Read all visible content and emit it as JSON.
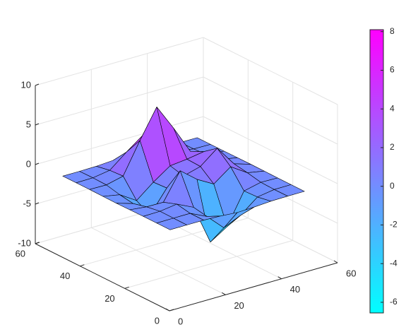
{
  "chart_data": {
    "type": "surface",
    "x": [
      1,
      7,
      13,
      19,
      25,
      31,
      37,
      43,
      49
    ],
    "y": [
      1,
      7,
      13,
      19,
      25,
      31,
      37,
      43,
      49
    ],
    "z": [
      [
        0,
        0,
        0,
        -0.08,
        -0.25,
        -0.17,
        -0.03,
        0,
        0
      ],
      [
        0,
        0.01,
        0.01,
        -0.99,
        -3.02,
        -2.05,
        -0.35,
        -0.01,
        0
      ],
      [
        0,
        0.03,
        0.33,
        -0.68,
        -5.68,
        -4.32,
        -0.44,
        0.05,
        0
      ],
      [
        -0.02,
        -0.25,
        -0.28,
        3.09,
        1.4,
        0.2,
        1.78,
        0.41,
        0.02
      ],
      [
        -0.04,
        -0.69,
        -2.77,
        0.06,
        0.98,
        1.57,
        3.27,
        0.7,
        0.03
      ],
      [
        -0.02,
        -0.42,
        -1.76,
        -0.05,
        1.42,
        1.65,
        1.99,
        0.4,
        0.02
      ],
      [
        0,
        -0.03,
        0.48,
        4.37,
        8.0,
        4.72,
        1.19,
        0.12,
        0
      ],
      [
        0,
        0.02,
        0.36,
        2.07,
        3.65,
        2.09,
        0.41,
        0.03,
        0
      ],
      [
        0,
        0,
        0.03,
        0.17,
        0.3,
        0.17,
        0.03,
        0,
        0
      ]
    ],
    "xlim": [
      0,
      60
    ],
    "ylim": [
      0,
      60
    ],
    "zlim": [
      -10,
      10
    ],
    "xticks": [
      0,
      20,
      40,
      60
    ],
    "yticks": [
      0,
      20,
      40,
      60
    ],
    "zticks": [
      -10,
      -5,
      0,
      5,
      10
    ],
    "colormap": "cool",
    "clim": [
      -6.55,
      8.1
    ],
    "colorbar_ticks": [
      -6,
      -4,
      -2,
      0,
      2,
      4,
      6,
      8
    ],
    "grid": true,
    "edge_color": "#000000"
  }
}
